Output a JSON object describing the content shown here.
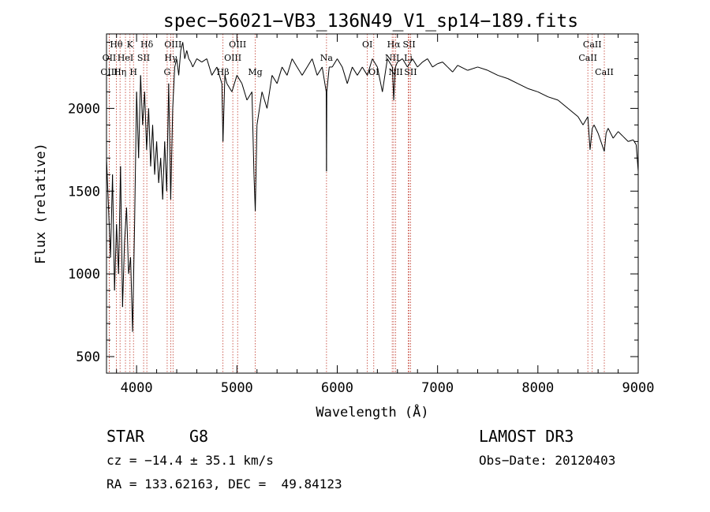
{
  "chart_data": {
    "type": "line",
    "title": "spec−56021−VB3_136N49_V1_sp14−189.fits",
    "xlabel": "Wavelength (Å)",
    "ylabel": "Flux (relative)",
    "xlim": [
      3700,
      9000
    ],
    "ylim": [
      400,
      2450
    ],
    "xticks": [
      4000,
      5000,
      6000,
      7000,
      8000,
      9000
    ],
    "yticks": [
      500,
      1000,
      1500,
      2000
    ],
    "series": [
      {
        "name": "flux",
        "x": [
          3700,
          3720,
          3740,
          3760,
          3780,
          3800,
          3820,
          3840,
          3860,
          3880,
          3900,
          3920,
          3940,
          3960,
          3980,
          4000,
          4020,
          4040,
          4060,
          4080,
          4100,
          4120,
          4140,
          4160,
          4180,
          4200,
          4220,
          4240,
          4260,
          4280,
          4300,
          4320,
          4340,
          4360,
          4380,
          4400,
          4420,
          4440,
          4460,
          4480,
          4500,
          4520,
          4540,
          4560,
          4600,
          4650,
          4700,
          4750,
          4800,
          4850,
          4861,
          4880,
          4900,
          4950,
          5000,
          5050,
          5100,
          5150,
          5170,
          5183,
          5200,
          5250,
          5300,
          5350,
          5400,
          5450,
          5500,
          5550,
          5600,
          5650,
          5700,
          5750,
          5800,
          5850,
          5890,
          5893,
          5896,
          5920,
          5950,
          6000,
          6050,
          6100,
          6150,
          6200,
          6250,
          6300,
          6350,
          6400,
          6450,
          6500,
          6550,
          6563,
          6580,
          6600,
          6650,
          6700,
          6750,
          6800,
          6850,
          6900,
          6950,
          7000,
          7050,
          7100,
          7150,
          7200,
          7300,
          7400,
          7500,
          7600,
          7700,
          7800,
          7900,
          8000,
          8100,
          8200,
          8300,
          8400,
          8450,
          8498,
          8520,
          8542,
          8560,
          8600,
          8662,
          8680,
          8700,
          8750,
          8800,
          8850,
          8900,
          8950,
          8980,
          9000
        ],
        "y": [
          1700,
          1400,
          1100,
          1600,
          900,
          1300,
          1000,
          1650,
          800,
          1200,
          1400,
          1000,
          1100,
          650,
          1300,
          2100,
          1700,
          2200,
          1900,
          2100,
          1750,
          2000,
          1650,
          1900,
          1600,
          1800,
          1550,
          1700,
          1450,
          1800,
          1500,
          2150,
          1450,
          2000,
          2250,
          2300,
          2200,
          2350,
          2400,
          2300,
          2350,
          2300,
          2280,
          2250,
          2300,
          2280,
          2300,
          2200,
          2250,
          2150,
          1800,
          2200,
          2150,
          2100,
          2200,
          2150,
          2050,
          2100,
          1600,
          1380,
          1900,
          2100,
          2000,
          2200,
          2150,
          2250,
          2200,
          2300,
          2250,
          2200,
          2250,
          2300,
          2200,
          2250,
          2100,
          1620,
          2100,
          2250,
          2250,
          2300,
          2250,
          2150,
          2250,
          2200,
          2250,
          2200,
          2300,
          2250,
          2100,
          2300,
          2250,
          2050,
          2250,
          2280,
          2300,
          2250,
          2300,
          2250,
          2280,
          2300,
          2250,
          2270,
          2280,
          2250,
          2220,
          2260,
          2230,
          2250,
          2230,
          2200,
          2180,
          2150,
          2120,
          2100,
          2070,
          2050,
          2000,
          1950,
          1900,
          1950,
          1750,
          1880,
          1900,
          1850,
          1740,
          1850,
          1880,
          1820,
          1860,
          1830,
          1800,
          1810,
          1780,
          1620
        ]
      }
    ],
    "lines": [
      {
        "label": "Hθ",
        "x": 3798,
        "row": 1
      },
      {
        "label": "OII",
        "x": 3727,
        "row": 2
      },
      {
        "label": "OIII",
        "x": 3727,
        "row": 3
      },
      {
        "label": "HeI",
        "x": 3889,
        "row": 2
      },
      {
        "label": "Hη",
        "x": 3835,
        "row": 3
      },
      {
        "label": "K",
        "x": 3934,
        "row": 1
      },
      {
        "label": "SII",
        "x": 4070,
        "row": 2
      },
      {
        "label": "H",
        "x": 3969,
        "row": 3
      },
      {
        "label": "Hδ",
        "x": 4102,
        "row": 1
      },
      {
        "label": "OIII",
        "x": 4363,
        "row": 1
      },
      {
        "label": "Hγ",
        "x": 4341,
        "row": 2
      },
      {
        "label": "G",
        "x": 4305,
        "row": 3
      },
      {
        "label": "OIII",
        "x": 5007,
        "row": 1
      },
      {
        "label": "OIII",
        "x": 4959,
        "row": 2
      },
      {
        "label": "Hβ",
        "x": 4861,
        "row": 3
      },
      {
        "label": "Mg",
        "x": 5183,
        "row": 3
      },
      {
        "label": "Na",
        "x": 5893,
        "row": 2
      },
      {
        "label": "OI",
        "x": 6300,
        "row": 1
      },
      {
        "label": "OI",
        "x": 6364,
        "row": 3
      },
      {
        "label": "Hα",
        "x": 6563,
        "row": 1
      },
      {
        "label": "SII",
        "x": 6717,
        "row": 1
      },
      {
        "label": "NII",
        "x": 6548,
        "row": 2
      },
      {
        "label": "NII",
        "x": 6583,
        "row": 3
      },
      {
        "label": "Li",
        "x": 6708,
        "row": 2
      },
      {
        "label": "SII",
        "x": 6731,
        "row": 3
      },
      {
        "label": "CaII",
        "x": 8542,
        "row": 1
      },
      {
        "label": "CaII",
        "x": 8498,
        "row": 2
      },
      {
        "label": "CaII",
        "x": 8662,
        "row": 3
      }
    ]
  },
  "info": {
    "object_class": "STAR",
    "subclass": "G8",
    "survey": "LAMOST DR3",
    "redshift": "cz = −14.4 ± 35.1 km/s",
    "obs_date": "Obs−Date: 20120403",
    "coords": "RA = 133.62163, DEC =  49.84123"
  }
}
